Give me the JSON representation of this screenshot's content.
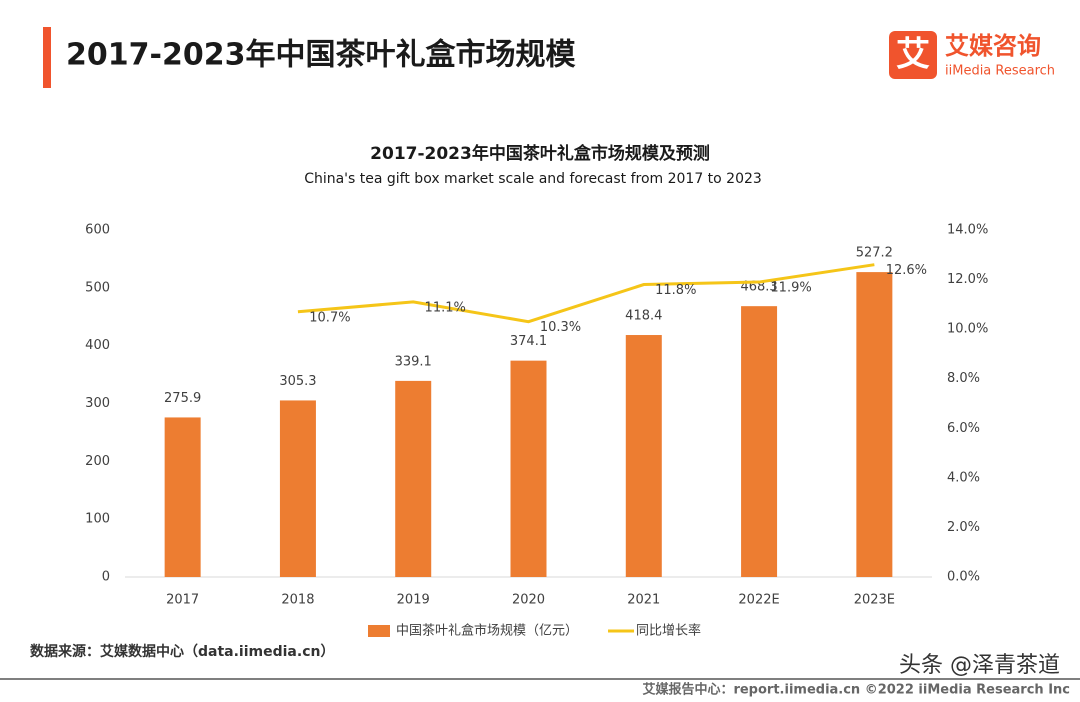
{
  "header": {
    "title": "2017-2023年中国茶叶礼盒市场规模",
    "logo_cn": "艾媒咨询",
    "logo_en": "iiMedia Research",
    "logo_icon": "艾"
  },
  "source": "数据来源：艾媒数据中心（data.iimedia.cn）",
  "footer": "艾媒报告中心：report.iimedia.cn  ©2022  iiMedia Research  Inc",
  "watermark": "头条 @泽青茶道",
  "chart_data": {
    "type": "bar",
    "title": "2017-2023年中国茶叶礼盒市场规模及预测",
    "subtitle": "China's tea gift box market scale and forecast from 2017 to 2023",
    "categories": [
      "2017",
      "2018",
      "2019",
      "2020",
      "2021",
      "2022E",
      "2023E"
    ],
    "series": [
      {
        "name": "中国茶叶礼盒市场规模（亿元）",
        "color": "#ed7d31",
        "type": "bar",
        "values": [
          275.9,
          305.3,
          339.1,
          374.1,
          418.4,
          468.3,
          527.2
        ]
      },
      {
        "name": "同比增长率",
        "color": "#f5c518",
        "type": "line",
        "axis": "y2",
        "values": [
          null,
          10.7,
          11.1,
          10.3,
          11.8,
          11.9,
          12.6
        ],
        "value_labels": [
          null,
          "10.7%",
          "11.1%",
          "10.3%",
          "11.8%",
          "11.9%",
          "12.6%"
        ]
      }
    ],
    "ylim": [
      0,
      600
    ],
    "yticks": [
      0,
      100,
      200,
      300,
      400,
      500,
      600
    ],
    "y2lim": [
      0,
      14
    ],
    "y2ticks": [
      {
        "value": 0,
        "label": "0.0%"
      },
      {
        "value": 2,
        "label": "2.0%"
      },
      {
        "value": 4,
        "label": "4.0%"
      },
      {
        "value": 6,
        "label": "6.0%"
      },
      {
        "value": 8,
        "label": "8.0%"
      },
      {
        "value": 10,
        "label": "10.0%"
      },
      {
        "value": 12,
        "label": "12.0%"
      },
      {
        "value": 14,
        "label": "14.0%"
      }
    ],
    "legend": "bottom"
  }
}
